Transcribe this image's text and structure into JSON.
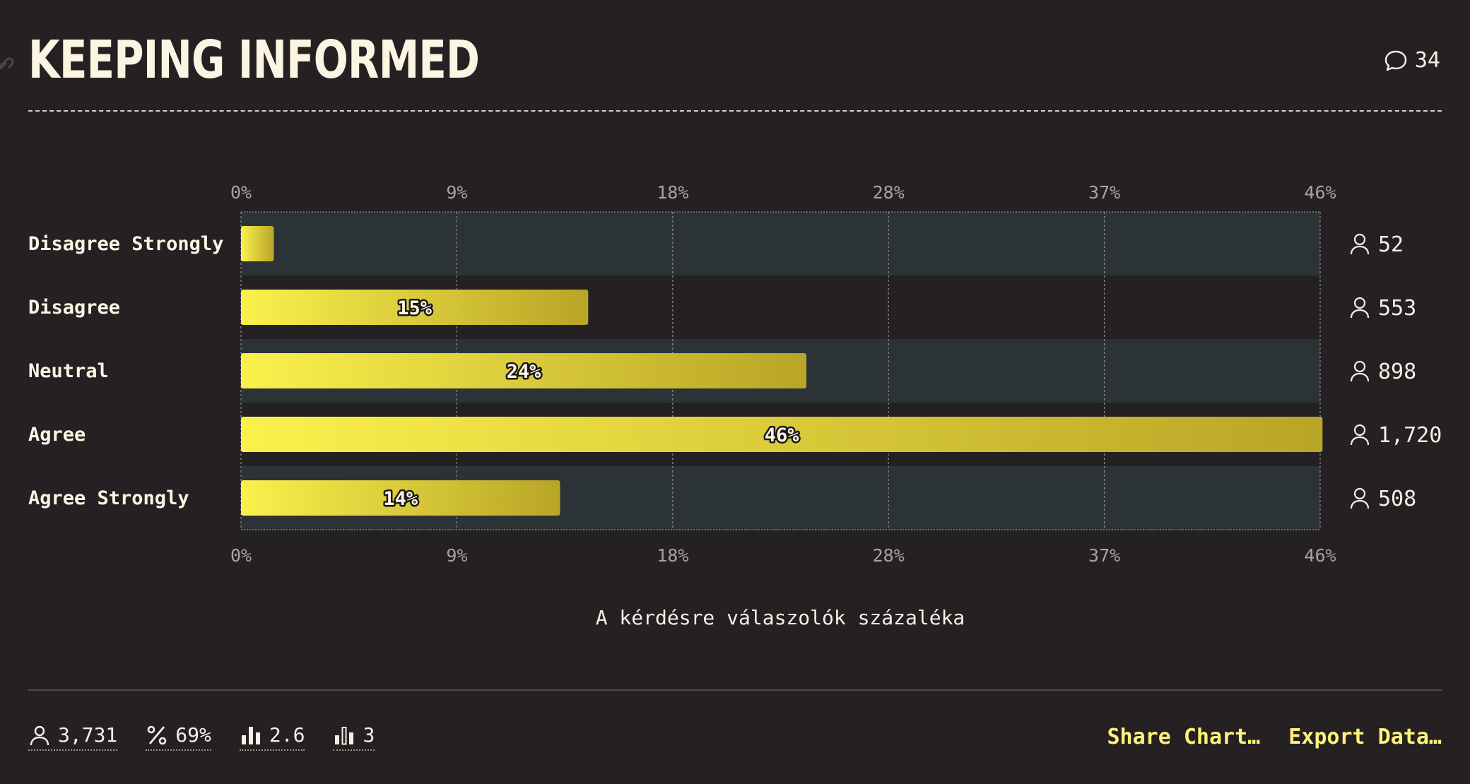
{
  "header": {
    "title": "KEEPING INFORMED",
    "comment_count": "34"
  },
  "chart_data": {
    "type": "bar",
    "orientation": "horizontal",
    "categories": [
      "Disagree Strongly",
      "Disagree",
      "Neutral",
      "Agree",
      "Agree Strongly"
    ],
    "values": [
      1.4,
      14.8,
      24.1,
      46.1,
      13.6
    ],
    "value_labels": [
      "",
      "15%",
      "24%",
      "46%",
      "14%"
    ],
    "counts": [
      "52",
      "553",
      "898",
      "1,720",
      "508"
    ],
    "ticks": [
      "0%",
      "9%",
      "18%",
      "28%",
      "37%",
      "46%"
    ],
    "xlim": [
      0,
      46
    ],
    "xlabel": "A kérdésre válaszolók százaléka",
    "grid": true,
    "colors": {
      "bar_start": "#fbf14d",
      "bar_end": "#b9a526",
      "band": "#2c3337",
      "grid": "#8a8c8c"
    }
  },
  "footer": {
    "stats": [
      {
        "icon": "user-icon",
        "value": "3,731"
      },
      {
        "icon": "percent-icon",
        "value": "69%"
      },
      {
        "icon": "bar-chart-icon",
        "value": "2.6"
      },
      {
        "icon": "bar-chart-outline-icon",
        "value": "3"
      }
    ],
    "actions": {
      "share": "Share Chart…",
      "export": "Export Data…"
    }
  }
}
